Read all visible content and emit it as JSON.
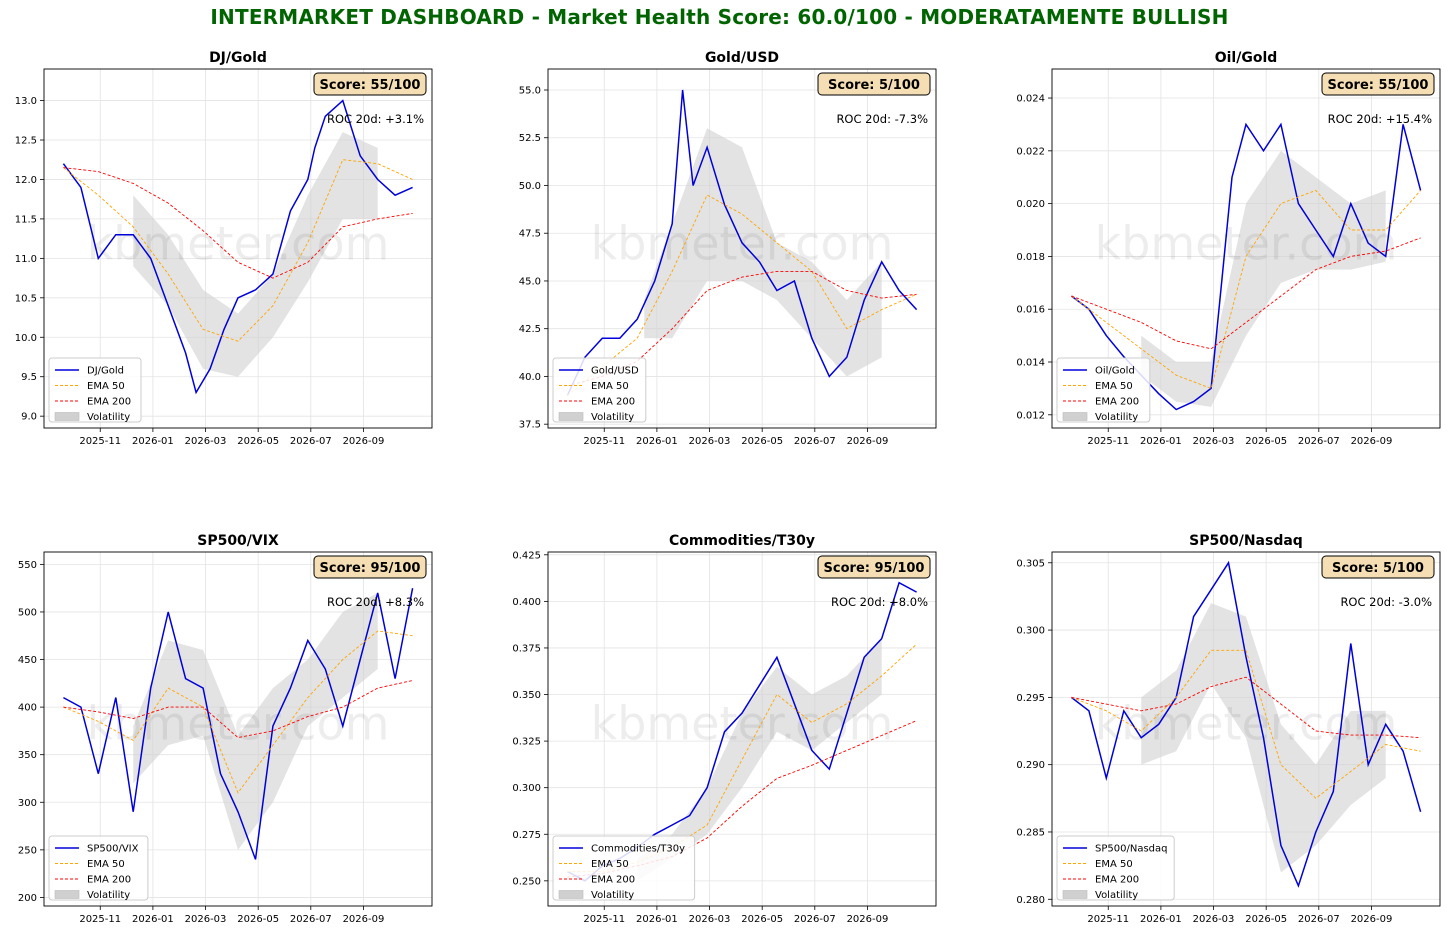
{
  "title": "INTERMARKET DASHBOARD - Market Health Score: 60.0/100 - MODERATAMENTE BULLISH",
  "colors": {
    "title": "#006400",
    "ratio": "#0000dd",
    "ema50": "#ffa500",
    "ema200": "#ff0000",
    "volatility": "#d0d0d0",
    "score_box": "#f5deb3"
  },
  "watermark": "kbmeter.com",
  "x_ticks": [
    "2025-11",
    "2026-01",
    "2026-03",
    "2026-05",
    "2026-07",
    "2026-09"
  ],
  "legend": {
    "ema50": "EMA 50",
    "ema200": "EMA 200",
    "volatility": "Volatility"
  },
  "chart_data": [
    {
      "type": "line",
      "title": "DJ/Gold",
      "score": "Score: 55/100",
      "roc": "ROC 20d: +3.1%",
      "ylim": [
        8.85,
        13.4
      ],
      "yticks": [
        "9.0",
        "9.5",
        "10.0",
        "10.5",
        "11.0",
        "11.5",
        "12.0",
        "12.5",
        "13.0"
      ],
      "ytick_values": [
        9.0,
        9.5,
        10.0,
        10.5,
        11.0,
        11.5,
        12.0,
        12.5,
        13.0
      ],
      "legend_placement": "lower-left",
      "series": [
        {
          "name": "DJ/Gold",
          "key": "ratio",
          "x": [
            0,
            0.05,
            0.1,
            0.15,
            0.2,
            0.25,
            0.3,
            0.35,
            0.38,
            0.42,
            0.46,
            0.5,
            0.55,
            0.6,
            0.65,
            0.7,
            0.72,
            0.75,
            0.8,
            0.85,
            0.9,
            0.95,
            1.0
          ],
          "y": [
            12.2,
            11.9,
            11.0,
            11.3,
            11.3,
            11.0,
            10.4,
            9.8,
            9.3,
            9.6,
            10.1,
            10.5,
            10.6,
            10.8,
            11.6,
            12.0,
            12.4,
            12.8,
            13.0,
            12.3,
            12.0,
            11.8,
            11.9
          ]
        },
        {
          "name": "EMA 50",
          "key": "ema50",
          "x": [
            0,
            0.1,
            0.2,
            0.3,
            0.4,
            0.5,
            0.6,
            0.7,
            0.8,
            0.9,
            1.0
          ],
          "y": [
            12.15,
            11.8,
            11.4,
            10.8,
            10.1,
            9.95,
            10.4,
            11.2,
            12.25,
            12.2,
            12.0
          ]
        },
        {
          "name": "EMA 200",
          "key": "ema200",
          "x": [
            0,
            0.1,
            0.2,
            0.3,
            0.4,
            0.5,
            0.6,
            0.7,
            0.8,
            0.9,
            1.0
          ],
          "y": [
            12.15,
            12.1,
            11.95,
            11.7,
            11.35,
            10.95,
            10.75,
            10.95,
            11.4,
            11.5,
            11.57
          ]
        }
      ],
      "volatility": {
        "x": [
          0.2,
          0.3,
          0.4,
          0.5,
          0.6,
          0.7,
          0.8,
          0.9
        ],
        "low": [
          10.9,
          10.4,
          9.6,
          9.5,
          10.0,
          10.7,
          11.5,
          11.5
        ],
        "high": [
          11.8,
          11.3,
          10.6,
          10.3,
          10.8,
          11.8,
          12.6,
          12.4
        ]
      }
    },
    {
      "type": "line",
      "title": "Gold/USD",
      "score": "Score: 5/100",
      "roc": "ROC 20d: -7.3%",
      "ylim": [
        37.3,
        56.1
      ],
      "yticks": [
        "37.5",
        "40.0",
        "42.5",
        "45.0",
        "47.5",
        "50.0",
        "52.5",
        "55.0"
      ],
      "ytick_values": [
        37.5,
        40.0,
        42.5,
        45.0,
        47.5,
        50.0,
        52.5,
        55.0
      ],
      "legend_placement": "lower-left",
      "series": [
        {
          "name": "Gold/USD",
          "key": "ratio",
          "x": [
            0,
            0.05,
            0.1,
            0.15,
            0.2,
            0.25,
            0.3,
            0.33,
            0.36,
            0.4,
            0.45,
            0.5,
            0.55,
            0.6,
            0.65,
            0.7,
            0.75,
            0.8,
            0.85,
            0.9,
            0.95,
            1.0
          ],
          "y": [
            39.0,
            41.0,
            42.0,
            42.0,
            43.0,
            45.0,
            48.0,
            55.0,
            50.0,
            52.0,
            49.0,
            47.0,
            46.0,
            44.5,
            45.0,
            42.0,
            40.0,
            41.0,
            44.0,
            46.0,
            44.5,
            43.5
          ]
        },
        {
          "name": "EMA 50",
          "key": "ema50",
          "x": [
            0,
            0.1,
            0.2,
            0.3,
            0.4,
            0.5,
            0.6,
            0.7,
            0.8,
            0.9,
            1.0
          ],
          "y": [
            39.0,
            40.5,
            42.0,
            45.5,
            49.5,
            48.5,
            47.0,
            45.5,
            42.5,
            43.5,
            44.3
          ]
        },
        {
          "name": "EMA 200",
          "key": "ema200",
          "x": [
            0,
            0.1,
            0.2,
            0.3,
            0.4,
            0.5,
            0.6,
            0.7,
            0.8,
            0.9,
            1.0
          ],
          "y": [
            39.5,
            40.0,
            40.8,
            42.5,
            44.5,
            45.2,
            45.5,
            45.5,
            44.5,
            44.1,
            44.3
          ]
        }
      ],
      "volatility": {
        "x": [
          0.22,
          0.3,
          0.4,
          0.5,
          0.6,
          0.7,
          0.8,
          0.9
        ],
        "low": [
          42.0,
          42.0,
          45.0,
          45.0,
          44.0,
          42.0,
          40.0,
          41.0
        ],
        "high": [
          44.0,
          48.0,
          53.0,
          52.0,
          47.0,
          46.0,
          44.0,
          46.0
        ]
      }
    },
    {
      "type": "line",
      "title": "Oil/Gold",
      "score": "Score: 55/100",
      "roc": "ROC 20d: +15.4%",
      "ylim": [
        0.0115,
        0.0251
      ],
      "yticks": [
        "0.012",
        "0.014",
        "0.016",
        "0.018",
        "0.020",
        "0.022",
        "0.024"
      ],
      "ytick_values": [
        0.012,
        0.014,
        0.016,
        0.018,
        0.02,
        0.022,
        0.024
      ],
      "legend_placement": "lower-left",
      "series": [
        {
          "name": "Oil/Gold",
          "key": "ratio",
          "x": [
            0,
            0.05,
            0.1,
            0.15,
            0.2,
            0.25,
            0.3,
            0.35,
            0.4,
            0.43,
            0.46,
            0.5,
            0.55,
            0.6,
            0.65,
            0.7,
            0.75,
            0.8,
            0.85,
            0.9,
            0.95,
            1.0
          ],
          "y": [
            0.0165,
            0.016,
            0.015,
            0.0142,
            0.0135,
            0.0128,
            0.0122,
            0.0125,
            0.013,
            0.017,
            0.021,
            0.023,
            0.022,
            0.023,
            0.02,
            0.019,
            0.018,
            0.02,
            0.0185,
            0.018,
            0.023,
            0.0205
          ]
        },
        {
          "name": "EMA 50",
          "key": "ema50",
          "x": [
            0,
            0.1,
            0.2,
            0.3,
            0.4,
            0.5,
            0.6,
            0.7,
            0.8,
            0.9,
            1.0
          ],
          "y": [
            0.0165,
            0.0155,
            0.0145,
            0.0135,
            0.013,
            0.018,
            0.02,
            0.0205,
            0.019,
            0.019,
            0.0205
          ]
        },
        {
          "name": "EMA 200",
          "key": "ema200",
          "x": [
            0,
            0.1,
            0.2,
            0.3,
            0.4,
            0.5,
            0.6,
            0.7,
            0.8,
            0.9,
            1.0
          ],
          "y": [
            0.0165,
            0.016,
            0.0155,
            0.0148,
            0.0145,
            0.0155,
            0.0165,
            0.0175,
            0.018,
            0.0182,
            0.0187
          ]
        }
      ],
      "volatility": {
        "x": [
          0.2,
          0.3,
          0.4,
          0.5,
          0.6,
          0.7,
          0.8,
          0.9
        ],
        "low": [
          0.0135,
          0.0125,
          0.0123,
          0.015,
          0.017,
          0.0175,
          0.0175,
          0.0178
        ],
        "high": [
          0.015,
          0.014,
          0.014,
          0.02,
          0.022,
          0.021,
          0.02,
          0.0205
        ]
      }
    },
    {
      "type": "line",
      "title": "SP500/VIX",
      "score": "Score: 95/100",
      "roc": "ROC 20d: +8.3%",
      "ylim": [
        191,
        563
      ],
      "yticks": [
        "200",
        "250",
        "300",
        "350",
        "400",
        "450",
        "500",
        "550"
      ],
      "ytick_values": [
        200,
        250,
        300,
        350,
        400,
        450,
        500,
        550
      ],
      "legend_placement": "lower-left",
      "series": [
        {
          "name": "SP500/VIX",
          "key": "ratio",
          "x": [
            0,
            0.05,
            0.1,
            0.15,
            0.2,
            0.25,
            0.3,
            0.35,
            0.4,
            0.45,
            0.5,
            0.55,
            0.6,
            0.65,
            0.7,
            0.75,
            0.8,
            0.85,
            0.9,
            0.95,
            1.0
          ],
          "y": [
            410,
            400,
            330,
            410,
            290,
            420,
            500,
            430,
            420,
            330,
            290,
            240,
            380,
            420,
            470,
            440,
            380,
            450,
            520,
            430,
            525
          ]
        },
        {
          "name": "EMA 50",
          "key": "ema50",
          "x": [
            0,
            0.1,
            0.2,
            0.3,
            0.4,
            0.5,
            0.6,
            0.7,
            0.8,
            0.9,
            1.0
          ],
          "y": [
            400,
            385,
            365,
            420,
            400,
            310,
            360,
            410,
            450,
            480,
            475
          ]
        },
        {
          "name": "EMA 200",
          "key": "ema200",
          "x": [
            0,
            0.1,
            0.2,
            0.3,
            0.4,
            0.5,
            0.6,
            0.7,
            0.8,
            0.9,
            1.0
          ],
          "y": [
            400,
            395,
            388,
            400,
            400,
            368,
            375,
            390,
            400,
            420,
            428
          ]
        }
      ],
      "volatility": {
        "x": [
          0.2,
          0.3,
          0.4,
          0.5,
          0.6,
          0.7,
          0.8,
          0.9
        ],
        "low": [
          320,
          360,
          370,
          250,
          300,
          380,
          410,
          440
        ],
        "high": [
          380,
          470,
          460,
          370,
          420,
          450,
          500,
          520
        ]
      }
    },
    {
      "type": "line",
      "title": "Commodities/T30y",
      "score": "Score: 95/100",
      "roc": "ROC 20d: +8.0%",
      "ylim": [
        0.2365,
        0.4265
      ],
      "yticks": [
        "0.250",
        "0.275",
        "0.300",
        "0.325",
        "0.350",
        "0.375",
        "0.400",
        "0.425"
      ],
      "ytick_values": [
        0.25,
        0.275,
        0.3,
        0.325,
        0.35,
        0.375,
        0.4,
        0.425
      ],
      "legend_placement": "lower-left",
      "series": [
        {
          "name": "Commodities/T30y",
          "key": "ratio",
          "x": [
            0,
            0.05,
            0.1,
            0.15,
            0.2,
            0.25,
            0.3,
            0.35,
            0.4,
            0.45,
            0.5,
            0.55,
            0.6,
            0.65,
            0.7,
            0.75,
            0.8,
            0.85,
            0.9,
            0.95,
            1.0
          ],
          "y": [
            0.255,
            0.25,
            0.258,
            0.262,
            0.268,
            0.275,
            0.28,
            0.285,
            0.3,
            0.33,
            0.34,
            0.355,
            0.37,
            0.345,
            0.32,
            0.31,
            0.34,
            0.37,
            0.38,
            0.41,
            0.405
          ]
        },
        {
          "name": "EMA 50",
          "key": "ema50",
          "x": [
            0,
            0.1,
            0.2,
            0.3,
            0.4,
            0.5,
            0.6,
            0.7,
            0.8,
            0.9,
            1.0
          ],
          "y": [
            0.255,
            0.255,
            0.26,
            0.268,
            0.28,
            0.315,
            0.35,
            0.335,
            0.345,
            0.36,
            0.377
          ]
        },
        {
          "name": "EMA 200",
          "key": "ema200",
          "x": [
            0,
            0.1,
            0.2,
            0.3,
            0.4,
            0.5,
            0.6,
            0.7,
            0.8,
            0.9,
            1.0
          ],
          "y": [
            0.252,
            0.254,
            0.258,
            0.263,
            0.273,
            0.29,
            0.305,
            0.312,
            0.32,
            0.328,
            0.336
          ]
        }
      ],
      "volatility": {
        "x": [
          0.2,
          0.3,
          0.4,
          0.5,
          0.6,
          0.7,
          0.8,
          0.9
        ],
        "low": [
          0.25,
          0.262,
          0.275,
          0.3,
          0.33,
          0.32,
          0.335,
          0.35
        ],
        "high": [
          0.262,
          0.275,
          0.3,
          0.34,
          0.365,
          0.35,
          0.36,
          0.38
        ]
      }
    },
    {
      "type": "line",
      "title": "SP500/Nasdaq",
      "score": "Score: 5/100",
      "roc": "ROC 20d: -3.0%",
      "ylim": [
        0.2795,
        0.3058
      ],
      "yticks": [
        "0.280",
        "0.285",
        "0.290",
        "0.295",
        "0.300",
        "0.305"
      ],
      "ytick_values": [
        0.28,
        0.285,
        0.29,
        0.295,
        0.3,
        0.305
      ],
      "legend_placement": "lower-left",
      "series": [
        {
          "name": "SP500/Nasdaq",
          "key": "ratio",
          "x": [
            0,
            0.05,
            0.1,
            0.15,
            0.2,
            0.25,
            0.3,
            0.35,
            0.4,
            0.45,
            0.5,
            0.55,
            0.6,
            0.65,
            0.7,
            0.75,
            0.8,
            0.85,
            0.9,
            0.95,
            1.0
          ],
          "y": [
            0.295,
            0.294,
            0.289,
            0.294,
            0.292,
            0.293,
            0.295,
            0.301,
            0.303,
            0.305,
            0.298,
            0.292,
            0.284,
            0.281,
            0.285,
            0.288,
            0.299,
            0.29,
            0.293,
            0.291,
            0.2865
          ]
        },
        {
          "name": "EMA 50",
          "key": "ema50",
          "x": [
            0,
            0.1,
            0.2,
            0.3,
            0.4,
            0.5,
            0.6,
            0.7,
            0.8,
            0.9,
            1.0
          ],
          "y": [
            0.295,
            0.294,
            0.2925,
            0.295,
            0.2985,
            0.2985,
            0.29,
            0.2875,
            0.2895,
            0.2915,
            0.291
          ]
        },
        {
          "name": "EMA 200",
          "key": "ema200",
          "x": [
            0,
            0.1,
            0.2,
            0.3,
            0.4,
            0.5,
            0.6,
            0.7,
            0.8,
            0.9,
            1.0
          ],
          "y": [
            0.295,
            0.2945,
            0.294,
            0.2945,
            0.2958,
            0.2965,
            0.2945,
            0.2925,
            0.2922,
            0.2922,
            0.292
          ]
        }
      ],
      "volatility": {
        "x": [
          0.2,
          0.3,
          0.4,
          0.5,
          0.6,
          0.7,
          0.8,
          0.9
        ],
        "low": [
          0.29,
          0.291,
          0.296,
          0.292,
          0.282,
          0.284,
          0.287,
          0.289
        ],
        "high": [
          0.295,
          0.297,
          0.302,
          0.301,
          0.293,
          0.29,
          0.294,
          0.294
        ]
      }
    }
  ]
}
